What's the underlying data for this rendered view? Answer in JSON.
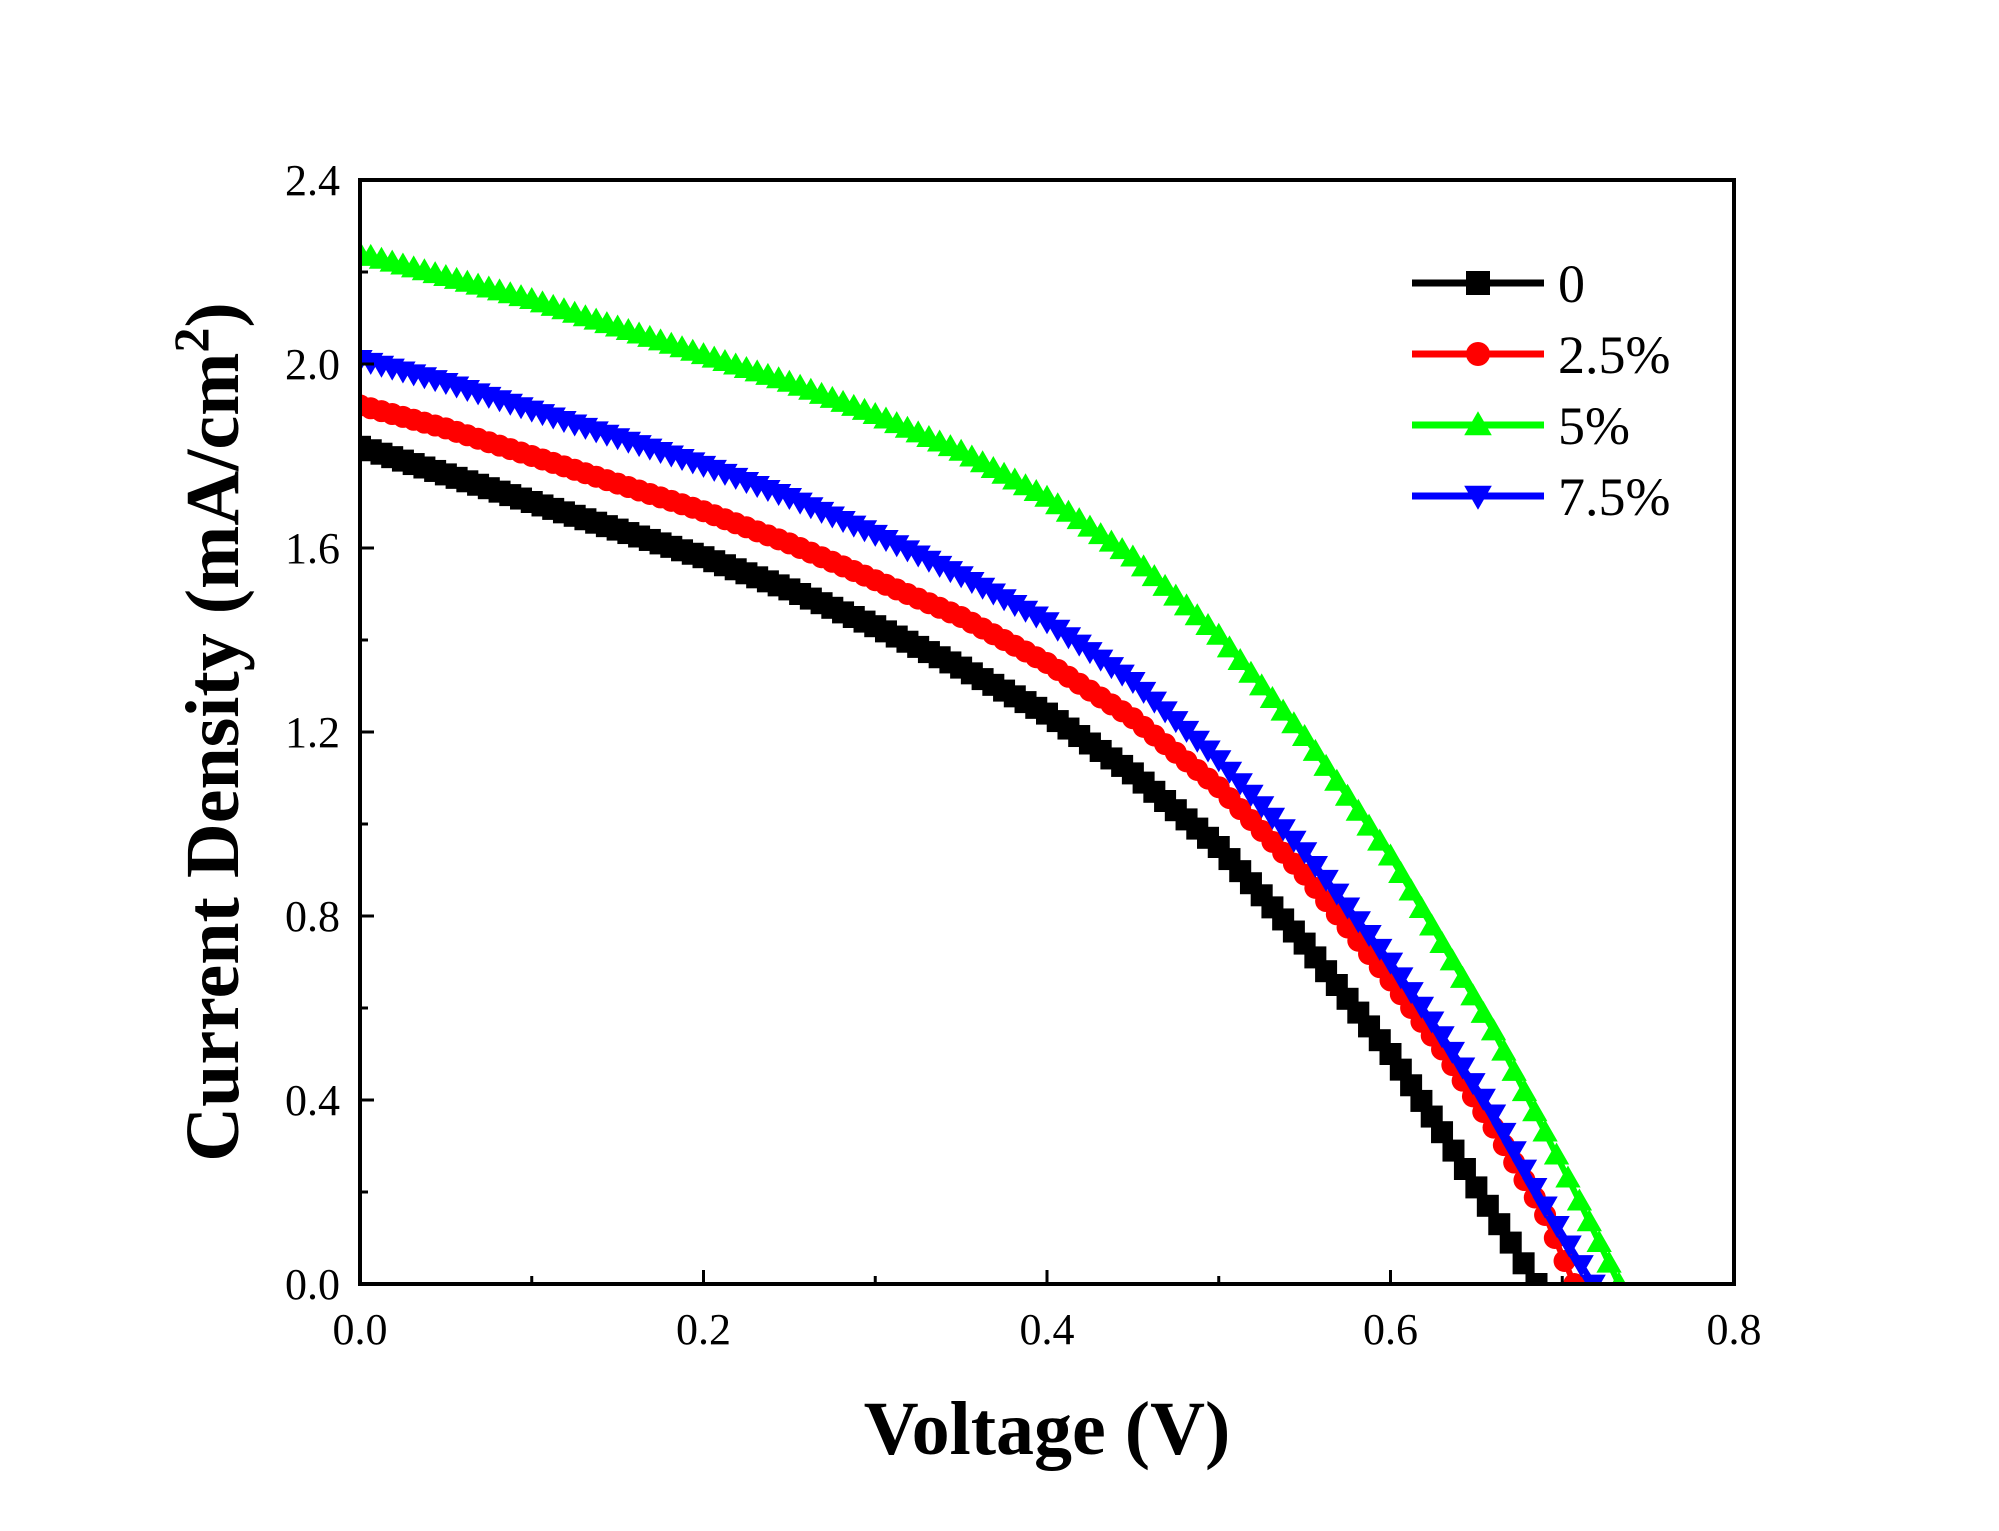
{
  "chart_data": {
    "type": "line",
    "title": "",
    "xlabel": "Voltage (V)",
    "ylabel": "Current Density (mA/cm",
    "ylabel_superscript": "2",
    "ylabel_close": ")",
    "xlim": [
      0.0,
      0.8
    ],
    "ylim": [
      0.0,
      2.4
    ],
    "x_ticks": [
      0.0,
      0.2,
      0.4,
      0.6,
      0.8
    ],
    "x_tick_labels": [
      "0.0",
      "0.2",
      "0.4",
      "0.6",
      "0.8"
    ],
    "y_ticks": [
      0.0,
      0.4,
      0.8,
      1.2,
      1.6,
      2.0,
      2.4
    ],
    "y_tick_labels": [
      "0.0",
      "0.4",
      "0.8",
      "1.2",
      "1.6",
      "2.0",
      "2.4"
    ],
    "grid": false,
    "legend_position": "top-right",
    "series": [
      {
        "name": "0",
        "color": "#000000",
        "marker": "square",
        "x": [
          0.0,
          0.05,
          0.1,
          0.15,
          0.2,
          0.25,
          0.3,
          0.35,
          0.4,
          0.45,
          0.5,
          0.55,
          0.6,
          0.63,
          0.65,
          0.67,
          0.685
        ],
        "y": [
          1.82,
          1.76,
          1.7,
          1.64,
          1.58,
          1.51,
          1.43,
          1.34,
          1.24,
          1.11,
          0.95,
          0.74,
          0.5,
          0.33,
          0.21,
          0.09,
          0.0
        ]
      },
      {
        "name": "2.5%",
        "color": "#ff0000",
        "marker": "circle",
        "x": [
          0.0,
          0.05,
          0.1,
          0.15,
          0.2,
          0.25,
          0.3,
          0.35,
          0.4,
          0.45,
          0.5,
          0.55,
          0.6,
          0.63,
          0.66,
          0.69,
          0.707
        ],
        "y": [
          1.91,
          1.86,
          1.8,
          1.74,
          1.68,
          1.61,
          1.53,
          1.45,
          1.35,
          1.23,
          1.08,
          0.89,
          0.66,
          0.51,
          0.34,
          0.15,
          0.0
        ]
      },
      {
        "name": "5%",
        "color": "#00ff00",
        "marker": "triangle-up",
        "x": [
          0.0,
          0.05,
          0.1,
          0.15,
          0.2,
          0.25,
          0.3,
          0.35,
          0.4,
          0.45,
          0.5,
          0.55,
          0.6,
          0.63,
          0.66,
          0.69,
          0.71,
          0.733
        ],
        "y": [
          2.24,
          2.19,
          2.14,
          2.08,
          2.02,
          1.96,
          1.89,
          1.81,
          1.71,
          1.58,
          1.41,
          1.19,
          0.93,
          0.74,
          0.55,
          0.33,
          0.18,
          0.0
        ]
      },
      {
        "name": "7.5%",
        "color": "#0000ff",
        "marker": "triangle-down",
        "x": [
          0.0,
          0.05,
          0.1,
          0.15,
          0.2,
          0.25,
          0.3,
          0.35,
          0.4,
          0.45,
          0.5,
          0.55,
          0.6,
          0.63,
          0.66,
          0.69,
          0.718
        ],
        "y": [
          2.01,
          1.96,
          1.9,
          1.84,
          1.78,
          1.71,
          1.63,
          1.54,
          1.44,
          1.31,
          1.14,
          0.94,
          0.7,
          0.54,
          0.37,
          0.17,
          0.0
        ]
      }
    ]
  }
}
